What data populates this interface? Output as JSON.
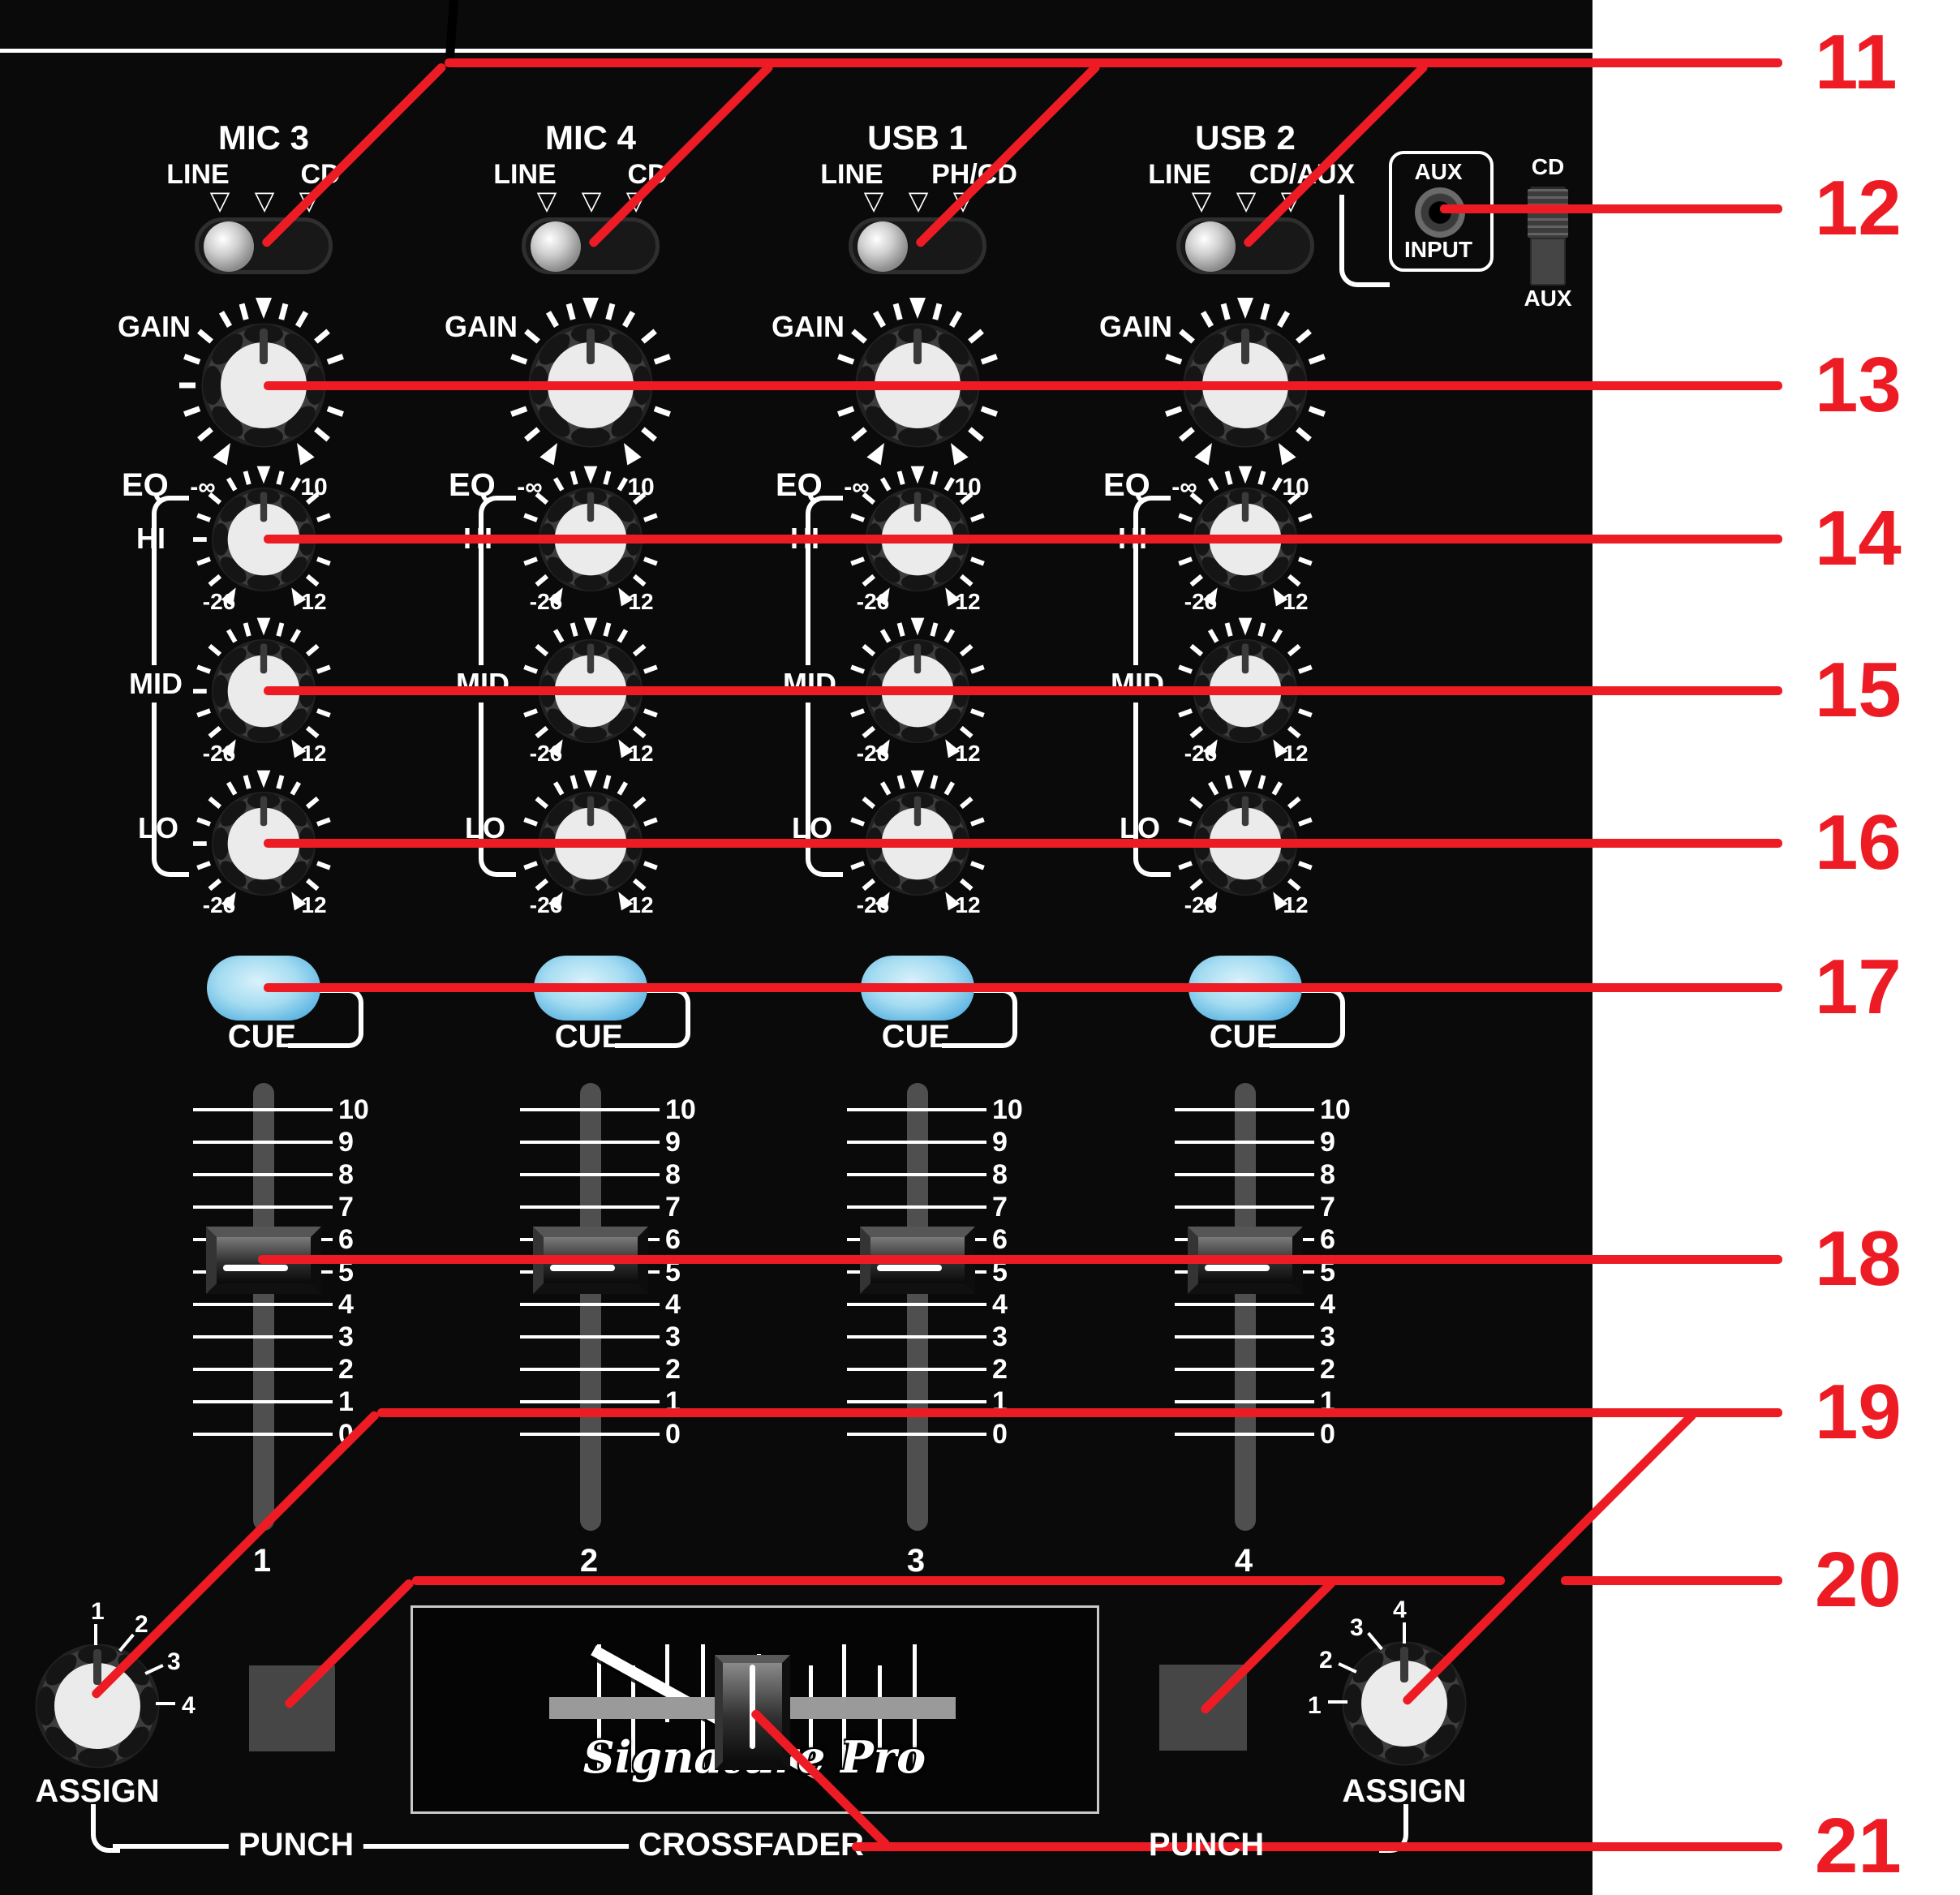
{
  "channels": [
    {
      "title": "MIC 3",
      "left_label": "LINE",
      "right_label": "CD"
    },
    {
      "title": "MIC 4",
      "left_label": "LINE",
      "right_label": "CD"
    },
    {
      "title": "USB 1",
      "left_label": "LINE",
      "right_label": "PH/CD"
    },
    {
      "title": "USB 2",
      "left_label": "LINE",
      "right_label": "CD/AUX"
    }
  ],
  "channel_labels": {
    "gain": "GAIN",
    "eq": "EQ",
    "hi": "HI",
    "mid": "MID",
    "lo": "LO",
    "cue": "CUE",
    "gain_min": "-∞",
    "gain_max": "10",
    "eq_min": "-26",
    "eq_max": "12"
  },
  "fader_scale": [
    "10",
    "9",
    "8",
    "7",
    "6",
    "5",
    "4",
    "3",
    "2",
    "1",
    "0"
  ],
  "channel_numbers": [
    "1",
    "2",
    "3",
    "4"
  ],
  "aux": {
    "label_top": "AUX",
    "label_bottom": "INPUT",
    "switch_top": "CD",
    "switch_bottom": "AUX"
  },
  "bottom": {
    "assign": "ASSIGN",
    "punch": "PUNCH",
    "crossfader": "CROSSFADER",
    "assign_positions": [
      "1",
      "2",
      "3",
      "4"
    ],
    "logo_text": "Signature Pro"
  },
  "callouts": [
    {
      "label": "11"
    },
    {
      "label": "12"
    },
    {
      "label": "13"
    },
    {
      "label": "14"
    },
    {
      "label": "15"
    },
    {
      "label": "16"
    },
    {
      "label": "17"
    },
    {
      "label": "18"
    },
    {
      "label": "19"
    },
    {
      "label": "20"
    },
    {
      "label": "21"
    }
  ],
  "colors": {
    "accent_red": "#ed1c24",
    "cue_blue": "#54b0e0",
    "panel_black": "#0a0a0a"
  }
}
